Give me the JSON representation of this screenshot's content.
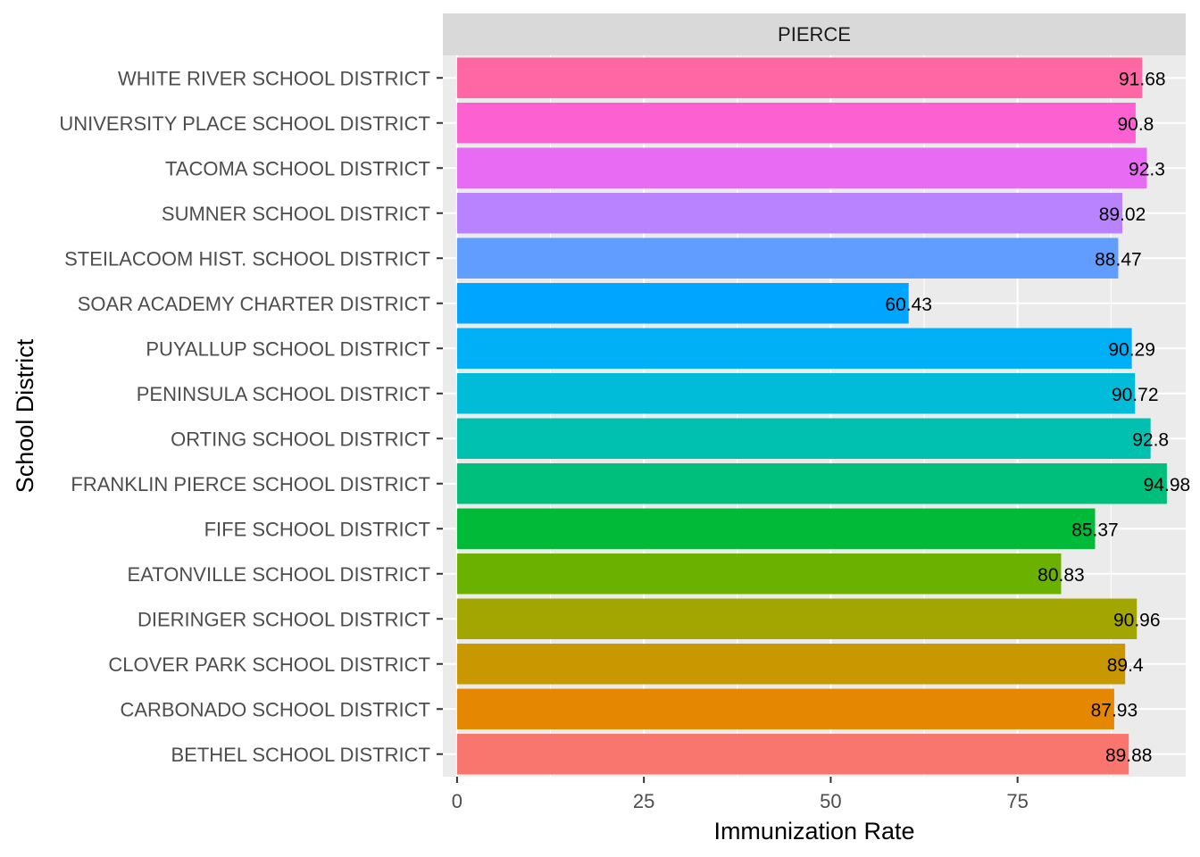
{
  "chart_data": {
    "type": "bar",
    "orientation": "horizontal",
    "facet": "PIERCE",
    "xlabel": "Immunization Rate",
    "ylabel": "School District",
    "xlim": [
      -1.9,
      97.5
    ],
    "x_ticks": [
      0,
      25,
      50,
      75
    ],
    "grid": true,
    "legend": "none",
    "categories": [
      "BETHEL SCHOOL DISTRICT",
      "CARBONADO SCHOOL DISTRICT",
      "CLOVER PARK SCHOOL DISTRICT",
      "DIERINGER SCHOOL DISTRICT",
      "EATONVILLE SCHOOL DISTRICT",
      "FIFE SCHOOL DISTRICT",
      "FRANKLIN PIERCE SCHOOL DISTRICT",
      "ORTING SCHOOL DISTRICT",
      "PENINSULA SCHOOL DISTRICT",
      "PUYALLUP SCHOOL DISTRICT",
      "SOAR ACADEMY CHARTER DISTRICT",
      "STEILACOOM HIST. SCHOOL DISTRICT",
      "SUMNER SCHOOL DISTRICT",
      "TACOMA SCHOOL DISTRICT",
      "UNIVERSITY PLACE SCHOOL DISTRICT",
      "WHITE RIVER SCHOOL DISTRICT"
    ],
    "values": [
      89.88,
      87.93,
      89.4,
      90.96,
      80.83,
      85.37,
      94.98,
      92.8,
      90.72,
      90.29,
      60.43,
      88.47,
      89.02,
      92.3,
      90.8,
      91.68
    ],
    "data_labels": [
      "89.88",
      "87.93",
      "89.4",
      "90.96",
      "80.83",
      "85.37",
      "94.98",
      "92.8",
      "90.72",
      "90.29",
      "60.43",
      "88.47",
      "89.02",
      "92.3",
      "90.8",
      "91.68"
    ],
    "colors": [
      "#F8766D",
      "#E58700",
      "#C99800",
      "#A3A500",
      "#6BB100",
      "#00BA38",
      "#00BF7D",
      "#00C0AF",
      "#00BCD8",
      "#00B0F6",
      "#00A5FF",
      "#619CFF",
      "#B983FF",
      "#E76BF3",
      "#FD61D1",
      "#FF67A4"
    ]
  }
}
